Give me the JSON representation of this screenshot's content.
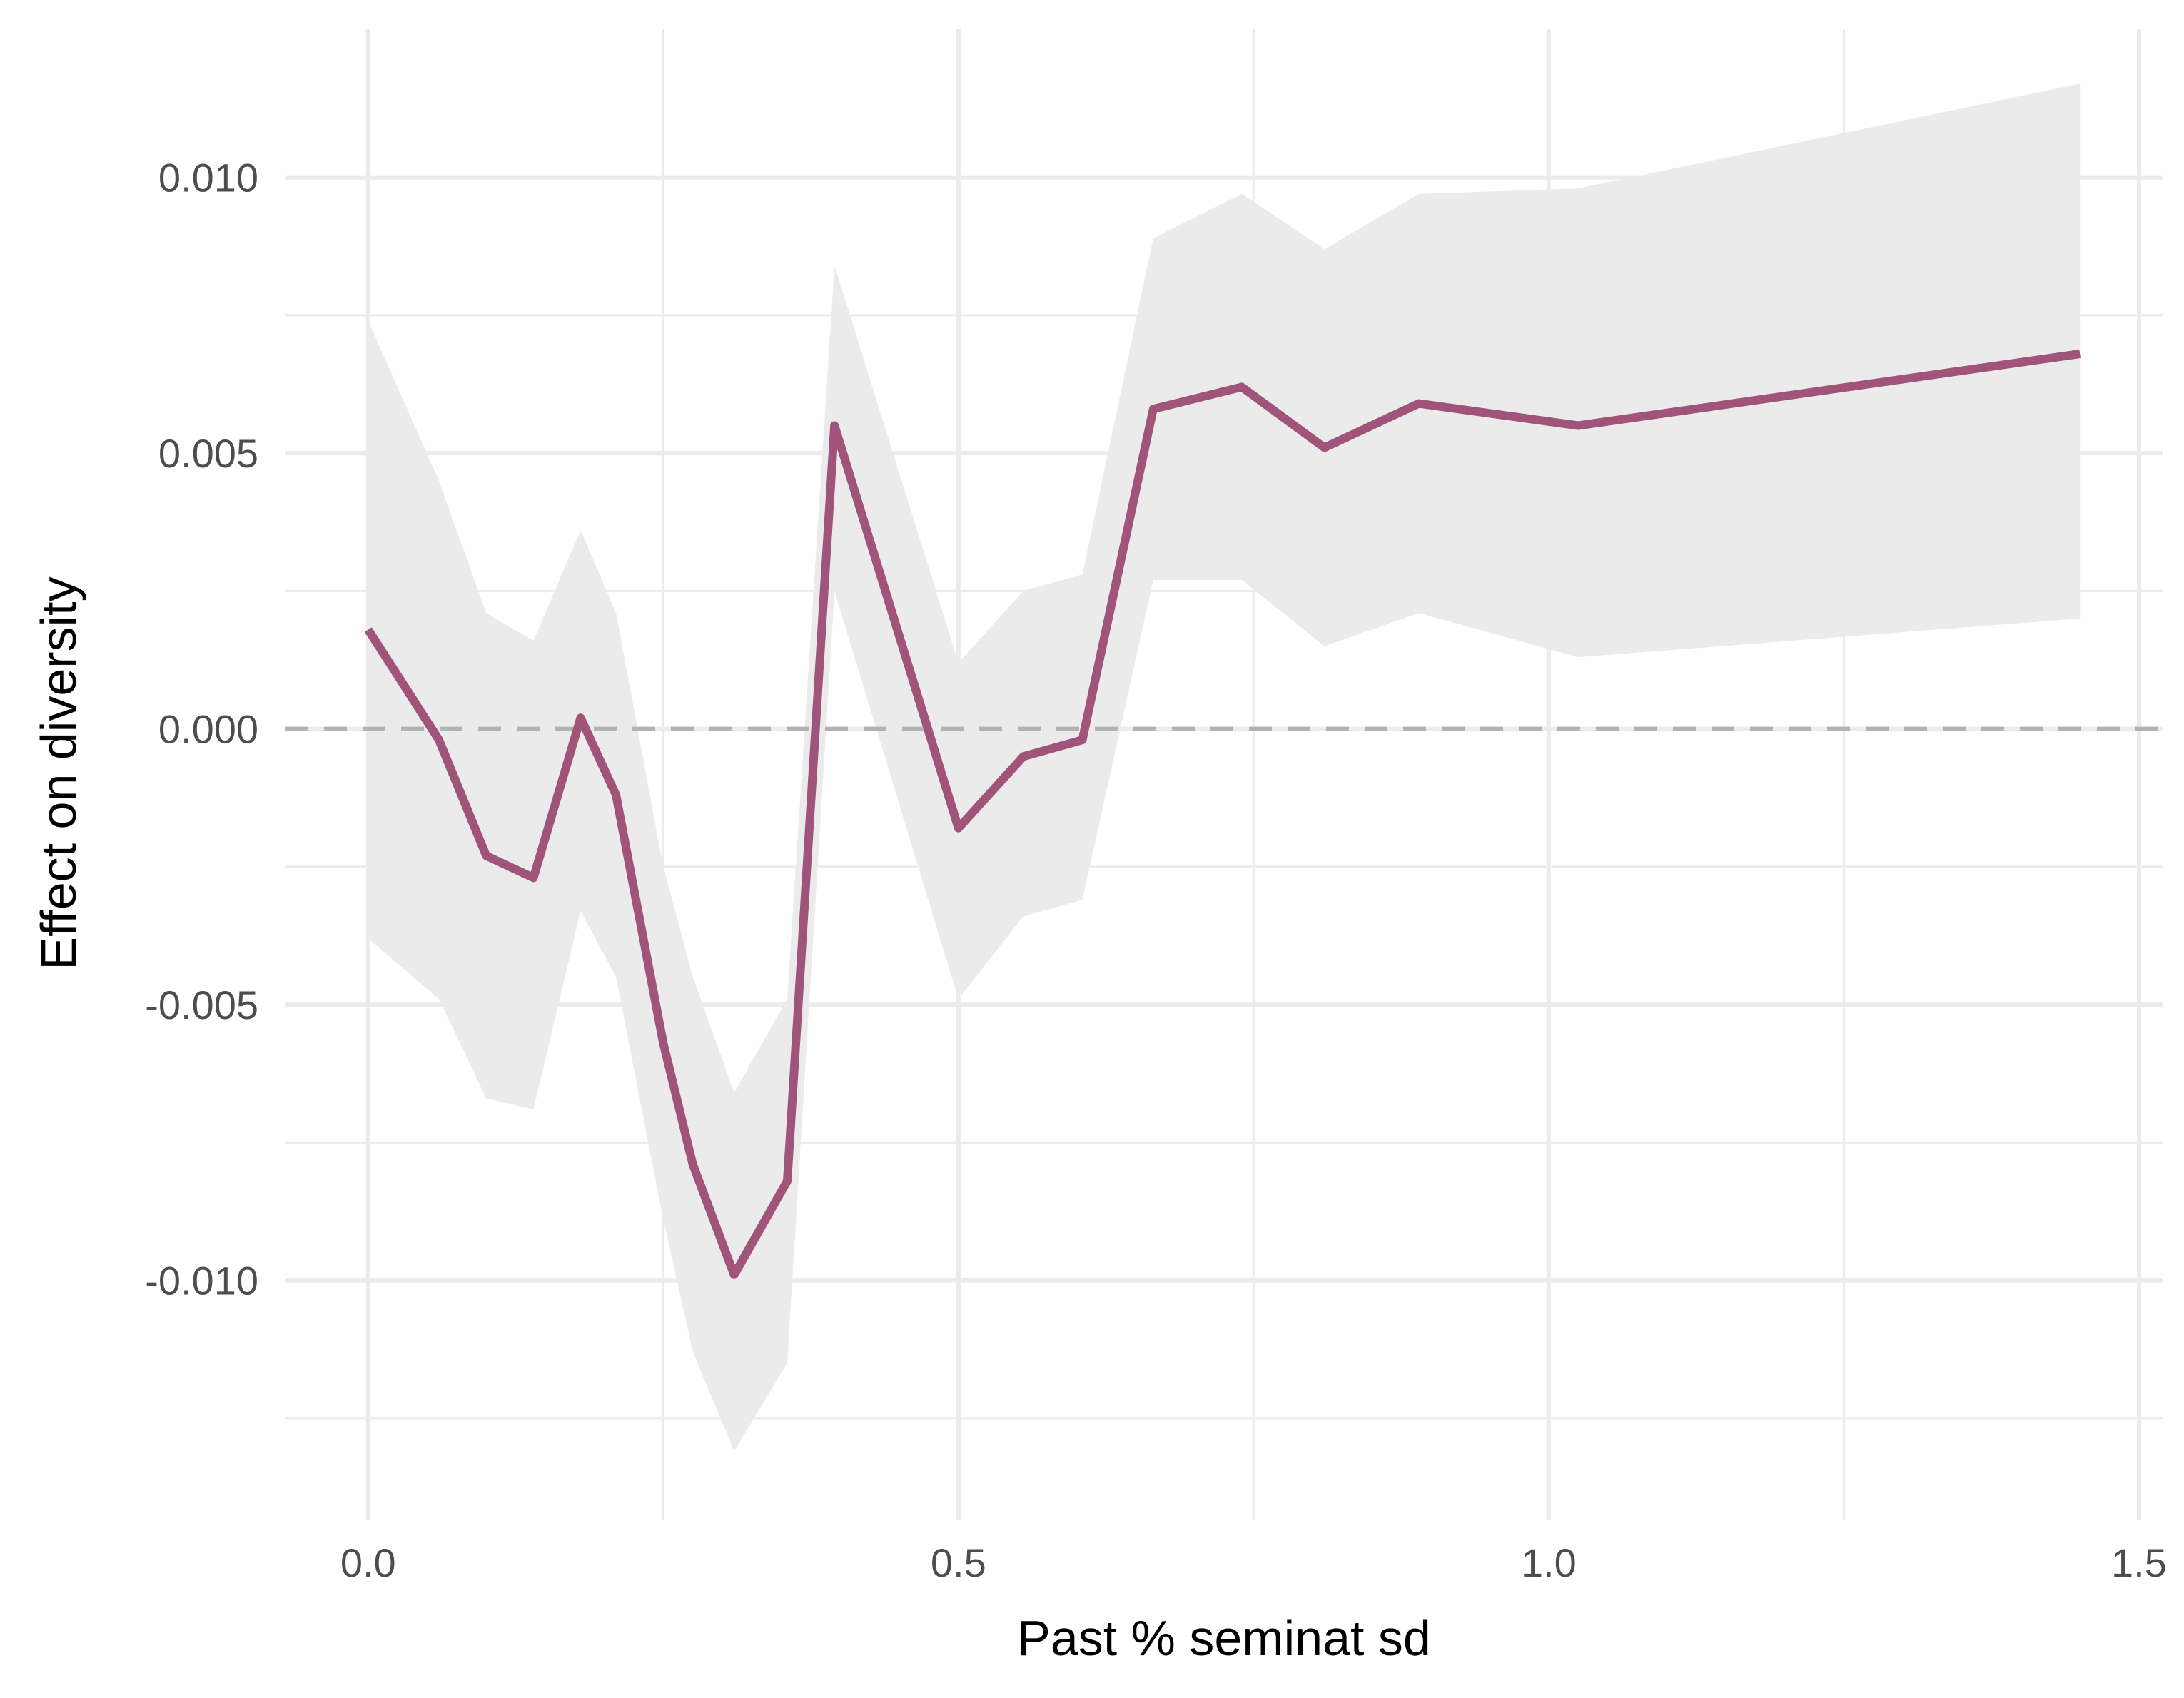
{
  "chart_data": {
    "type": "line",
    "title": "",
    "xlabel": "Past % seminat sd",
    "ylabel": "Effect on diversity",
    "xlim": [
      -0.07,
      1.52
    ],
    "ylim": [
      -0.01434,
      0.0127
    ],
    "x_ticks": [
      0.0,
      0.5,
      1.0,
      1.5
    ],
    "x_tick_labels": [
      "0.0",
      "0.5",
      "1.0",
      "1.5"
    ],
    "x_minor_ticks": [
      0.25,
      0.75,
      1.25
    ],
    "y_ticks": [
      -0.01,
      -0.005,
      0.0,
      0.005,
      0.01
    ],
    "y_tick_labels": [
      "-0.010",
      "-0.005",
      "0.000",
      "0.005",
      "0.010"
    ],
    "y_minor_ticks": [
      -0.0125,
      -0.0075,
      -0.0025,
      0.0025,
      0.0075
    ],
    "grid": true,
    "reference_line": {
      "y": 0.0,
      "style": "dashed",
      "color": "#b3b3b3"
    },
    "series": [
      {
        "x": [
          0.0,
          0.06,
          0.1,
          0.14,
          0.18,
          0.21,
          0.25,
          0.275,
          0.31,
          0.355,
          0.395,
          0.5,
          0.555,
          0.605,
          0.665,
          0.74,
          0.81,
          0.89,
          1.025,
          1.45
        ],
        "values": [
          0.0018,
          -0.0002,
          -0.0023,
          -0.0027,
          0.0002,
          -0.0012,
          -0.0057,
          -0.0079,
          -0.0099,
          -0.0082,
          0.0055,
          -0.0018,
          -0.0005,
          -0.0002,
          0.0058,
          0.0062,
          0.0051,
          0.0059,
          0.0055,
          0.0068
        ],
        "lower": [
          -0.0038,
          -0.0049,
          -0.0067,
          -0.0069,
          -0.0033,
          -0.0045,
          -0.0089,
          -0.0113,
          -0.0131,
          -0.0115,
          0.0025,
          -0.0049,
          -0.0034,
          -0.0031,
          0.0027,
          0.0027,
          0.0015,
          0.0021,
          0.0013,
          0.002
        ],
        "upper": [
          0.0074,
          0.0045,
          0.0021,
          0.0016,
          0.0036,
          0.0021,
          -0.0025,
          -0.0045,
          -0.0066,
          -0.0049,
          0.0084,
          0.0012,
          0.0025,
          0.0028,
          0.0089,
          0.0097,
          0.0087,
          0.0097,
          0.0098,
          0.0117
        ]
      }
    ],
    "colors": {
      "line": "#a0547a",
      "band": "#ebebeb",
      "grid": "#ebebeb",
      "reference": "#b3b3b3"
    }
  }
}
